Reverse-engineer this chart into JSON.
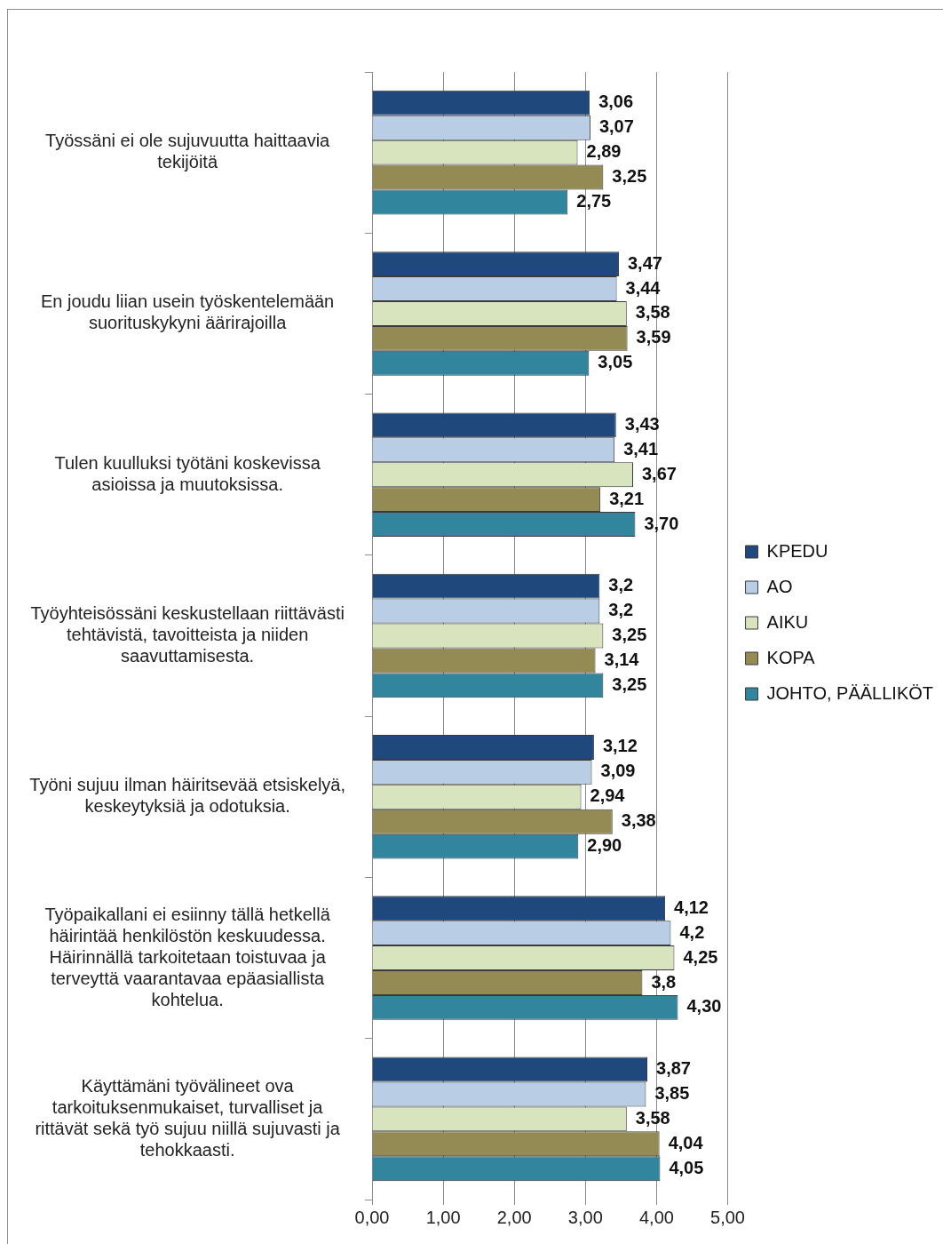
{
  "chart_data": {
    "type": "bar",
    "orientation": "horizontal",
    "categories": [
      "Työssäni ei ole sujuvuutta haittaavia tekijöitä",
      "En joudu liian usein työskentelemään suorituskykyni äärirajoilla",
      "Tulen kuulluksi työtäni koskevissa asioissa ja muutoksissa.",
      "Työyhteisössäni keskustellaan riittävästi tehtävistä, tavoitteista ja niiden saavuttamisesta.",
      "Työni sujuu ilman häiritsevää etsiskelyä, keskeytyksiä ja odotuksia.",
      "Työpaikallani ei esiinny tällä hetkellä häirintää henkilöstön keskuudessa. Häirinnällä tarkoitetaan toistuvaa ja terveyttä vaarantavaa epäasiallista kohtelua.",
      "Käyttämäni työvälineet ova tarkoituksenmukaiset, turvalliset ja rittävät sekä työ sujuu niillä sujuvasti ja tehokkaasti."
    ],
    "series": [
      {
        "name": "KPEDU",
        "color": "#1f497d",
        "values": [
          3.06,
          3.47,
          3.43,
          3.2,
          3.12,
          4.12,
          3.87
        ],
        "value_labels": [
          "3,06",
          "3,47",
          "3,43",
          "3,2",
          "3,12",
          "4,12",
          "3,87"
        ]
      },
      {
        "name": "AO",
        "color": "#b9cde5",
        "values": [
          3.07,
          3.44,
          3.41,
          3.2,
          3.09,
          4.2,
          3.85
        ],
        "value_labels": [
          "3,07",
          "3,44",
          "3,41",
          "3,2",
          "3,09",
          "4,2",
          "3,85"
        ]
      },
      {
        "name": "AIKU",
        "color": "#d7e4bd",
        "values": [
          2.89,
          3.58,
          3.67,
          3.25,
          2.94,
          4.25,
          3.58
        ],
        "value_labels": [
          "2,89",
          "3,58",
          "3,67",
          "3,25",
          "2,94",
          "4,25",
          "3,58"
        ]
      },
      {
        "name": "KOPA",
        "color": "#948a54",
        "values": [
          3.25,
          3.59,
          3.21,
          3.14,
          3.38,
          3.8,
          4.04
        ],
        "value_labels": [
          "3,25",
          "3,59",
          "3,21",
          "3,14",
          "3,38",
          "3,8",
          "4,04"
        ]
      },
      {
        "name": "JOHTO, PÄÄLLIKÖT",
        "color": "#31859c",
        "values": [
          2.75,
          3.05,
          3.7,
          3.25,
          2.9,
          4.3,
          4.05
        ],
        "value_labels": [
          "2,75",
          "3,05",
          "3,70",
          "3,25",
          "2,90",
          "4,30",
          "4,05"
        ]
      }
    ],
    "xlim": [
      0,
      5
    ],
    "xticks": [
      {
        "value": 0,
        "label": "0,00"
      },
      {
        "value": 1,
        "label": "1,00"
      },
      {
        "value": 2,
        "label": "2,00"
      },
      {
        "value": 3,
        "label": "3,00"
      },
      {
        "value": 4,
        "label": "4,00"
      },
      {
        "value": 5,
        "label": "5,00"
      }
    ],
    "grid": "x",
    "legend": "right"
  }
}
